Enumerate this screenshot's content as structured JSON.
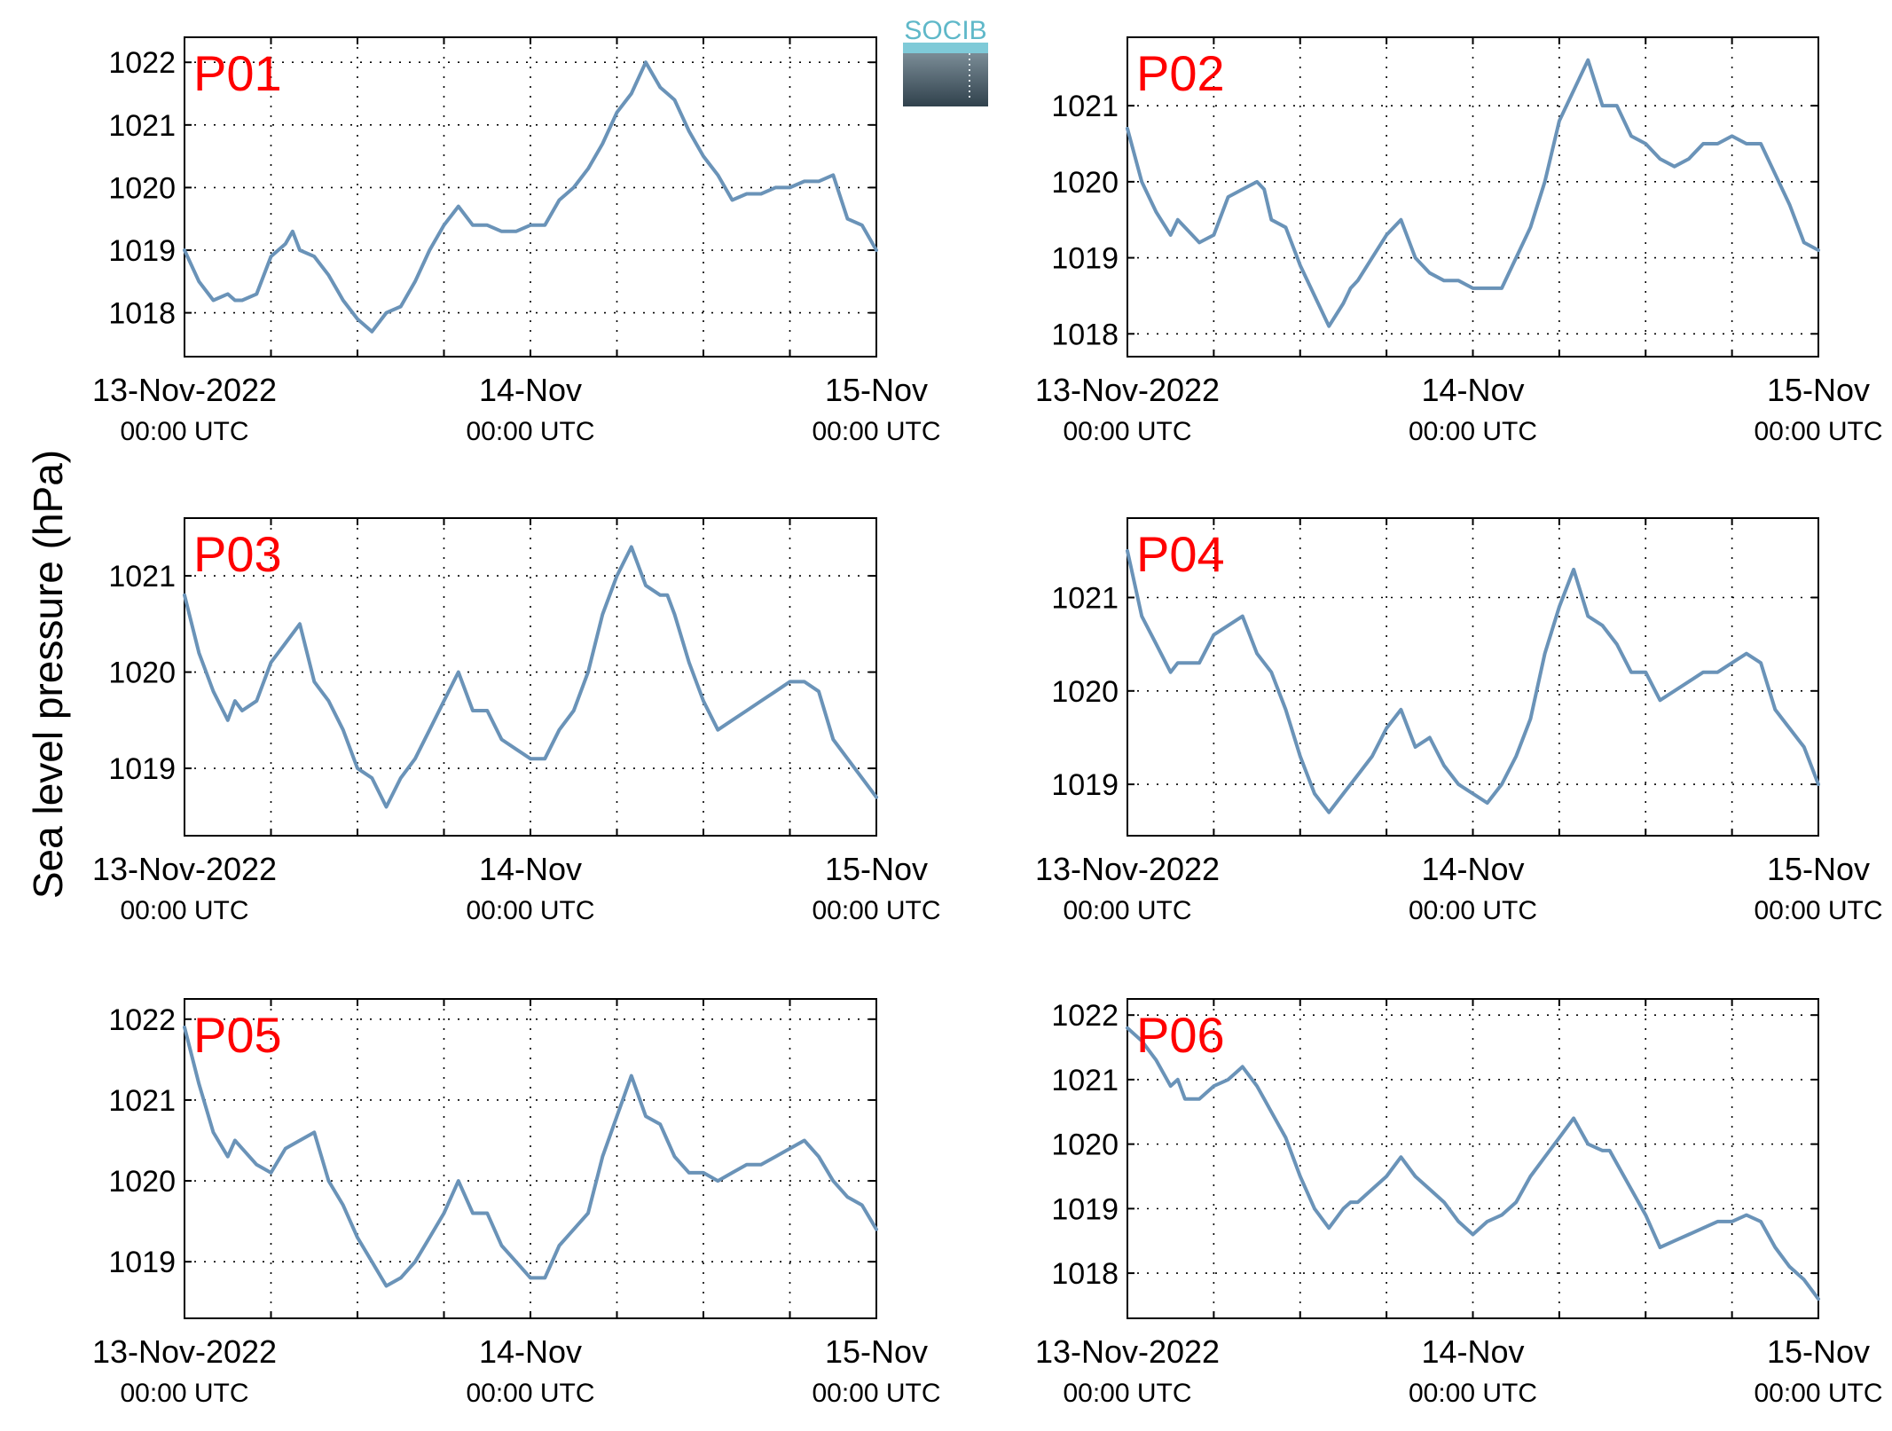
{
  "figure": {
    "ylabel": "Sea level pressure (hPa)",
    "logo_text": "SOCIB",
    "line_color": "#6a93b8",
    "label_color": "#ff0000",
    "grid_style": "dotted"
  },
  "chart_data": [
    {
      "type": "line",
      "name": "P01",
      "x_unit": "hours since 13-Nov-2022 00:00 UTC",
      "xlim": [
        0,
        48
      ],
      "ylim": [
        1017.3,
        1022.4
      ],
      "yticks": [
        1018,
        1019,
        1020,
        1021,
        1022
      ],
      "xticks": [
        {
          "value": 0,
          "line1": "13-Nov-2022",
          "line2": "00:00 UTC"
        },
        {
          "value": 24,
          "line1": "14-Nov",
          "line2": "00:00 UTC"
        },
        {
          "value": 48,
          "line1": "15-Nov",
          "line2": "00:00 UTC"
        }
      ],
      "x": [
        0,
        1,
        2,
        3,
        3.5,
        4,
        5,
        6,
        7,
        7.5,
        8,
        9,
        10,
        11,
        12,
        13,
        14,
        15,
        15.5,
        16,
        17,
        18,
        19,
        20,
        21,
        22,
        23,
        24,
        25,
        26,
        27,
        28,
        29,
        30,
        31,
        32,
        33,
        33.5,
        34,
        35,
        36,
        37,
        38,
        39,
        40,
        41,
        42,
        43,
        44,
        45,
        46,
        47,
        48
      ],
      "y": [
        1019,
        1018.5,
        1018.2,
        1018.3,
        1018.2,
        1018.2,
        1018.3,
        1018.9,
        1019.1,
        1019.3,
        1019.0,
        1018.9,
        1018.6,
        1018.2,
        1017.9,
        1017.7,
        1018.0,
        1018.1,
        1018.3,
        1018.5,
        1019.0,
        1019.4,
        1019.7,
        1019.4,
        1019.4,
        1019.3,
        1019.3,
        1019.4,
        1019.4,
        1019.8,
        1020.0,
        1020.3,
        1020.7,
        1021.2,
        1021.5,
        1022.0,
        1021.6,
        1021.5,
        1021.4,
        1020.9,
        1020.5,
        1020.2,
        1019.8,
        1019.9,
        1019.9,
        1020.0,
        1020.0,
        1020.1,
        1020.1,
        1020.2,
        1019.5,
        1019.4,
        1019.0
      ]
    },
    {
      "type": "line",
      "name": "P02",
      "x_unit": "hours since 13-Nov-2022 00:00 UTC",
      "xlim": [
        0,
        48
      ],
      "ylim": [
        1017.7,
        1021.9
      ],
      "yticks": [
        1018,
        1019,
        1020,
        1021
      ],
      "xticks": [
        {
          "value": 0,
          "line1": "13-Nov-2022",
          "line2": "00:00 UTC"
        },
        {
          "value": 24,
          "line1": "14-Nov",
          "line2": "00:00 UTC"
        },
        {
          "value": 48,
          "line1": "15-Nov",
          "line2": "00:00 UTC"
        }
      ],
      "x": [
        0,
        1,
        2,
        3,
        3.5,
        4,
        5,
        6,
        7,
        8,
        9,
        9.5,
        10,
        11,
        12,
        13,
        14,
        15,
        15.5,
        16,
        17,
        18,
        19,
        20,
        21,
        22,
        23,
        24,
        25,
        26,
        27,
        28,
        29,
        30,
        31,
        32,
        32.5,
        33,
        34,
        35,
        36,
        37,
        38,
        39,
        40,
        41,
        42,
        43,
        44,
        45,
        46,
        47,
        48
      ],
      "y": [
        1020.7,
        1020.0,
        1019.6,
        1019.3,
        1019.5,
        1019.4,
        1019.2,
        1019.3,
        1019.8,
        1019.9,
        1020.0,
        1019.9,
        1019.5,
        1019.4,
        1018.9,
        1018.5,
        1018.1,
        1018.4,
        1018.6,
        1018.7,
        1019.0,
        1019.3,
        1019.5,
        1019.0,
        1018.8,
        1018.7,
        1018.7,
        1018.6,
        1018.6,
        1018.6,
        1019.0,
        1019.4,
        1020.0,
        1020.8,
        1021.2,
        1021.6,
        1021.3,
        1021.0,
        1021.0,
        1020.6,
        1020.5,
        1020.3,
        1020.2,
        1020.3,
        1020.5,
        1020.5,
        1020.6,
        1020.5,
        1020.5,
        1020.1,
        1019.7,
        1019.2,
        1019.1
      ]
    },
    {
      "type": "line",
      "name": "P03",
      "x_unit": "hours since 13-Nov-2022 00:00 UTC",
      "xlim": [
        0,
        48
      ],
      "ylim": [
        1018.3,
        1021.6
      ],
      "yticks": [
        1019,
        1020,
        1021
      ],
      "xticks": [
        {
          "value": 0,
          "line1": "13-Nov-2022",
          "line2": "00:00 UTC"
        },
        {
          "value": 24,
          "line1": "14-Nov",
          "line2": "00:00 UTC"
        },
        {
          "value": 48,
          "line1": "15-Nov",
          "line2": "00:00 UTC"
        }
      ],
      "x": [
        0,
        1,
        2,
        3,
        3.5,
        4,
        5,
        6,
        7,
        8,
        9,
        9.5,
        10,
        11,
        12,
        13,
        14,
        15,
        15.5,
        16,
        17,
        18,
        19,
        20,
        21,
        22,
        23,
        24,
        25,
        26,
        27,
        28,
        29,
        30,
        31,
        32,
        33,
        33.5,
        34,
        35,
        36,
        37,
        38,
        39,
        40,
        41,
        42,
        43,
        44,
        45,
        46,
        47,
        48
      ],
      "y": [
        1020.8,
        1020.2,
        1019.8,
        1019.5,
        1019.7,
        1019.6,
        1019.7,
        1020.1,
        1020.3,
        1020.5,
        1019.9,
        1019.8,
        1019.7,
        1019.4,
        1019.0,
        1018.9,
        1018.6,
        1018.9,
        1019.0,
        1019.1,
        1019.4,
        1019.7,
        1020.0,
        1019.6,
        1019.6,
        1019.3,
        1019.2,
        1019.1,
        1019.1,
        1019.4,
        1019.6,
        1020.0,
        1020.6,
        1021.0,
        1021.3,
        1020.9,
        1020.8,
        1020.8,
        1020.6,
        1020.1,
        1019.7,
        1019.4,
        1019.5,
        1019.6,
        1019.7,
        1019.8,
        1019.9,
        1019.9,
        1019.8,
        1019.3,
        1019.1,
        1018.9,
        1018.7
      ]
    },
    {
      "type": "line",
      "name": "P04",
      "x_unit": "hours since 13-Nov-2022 00:00 UTC",
      "xlim": [
        0,
        48
      ],
      "ylim": [
        1018.45,
        1021.85
      ],
      "yticks": [
        1019,
        1020,
        1021
      ],
      "xticks": [
        {
          "value": 0,
          "line1": "13-Nov-2022",
          "line2": "00:00 UTC"
        },
        {
          "value": 24,
          "line1": "14-Nov",
          "line2": "00:00 UTC"
        },
        {
          "value": 48,
          "line1": "15-Nov",
          "line2": "00:00 UTC"
        }
      ],
      "x": [
        0,
        1,
        2,
        3,
        3.5,
        4,
        5,
        6,
        7,
        8,
        9,
        9.5,
        10,
        11,
        12,
        13,
        14,
        15,
        15.5,
        16,
        17,
        18,
        19,
        20,
        21,
        22,
        23,
        24,
        25,
        26,
        27,
        28,
        29,
        30,
        31,
        32,
        33,
        33.5,
        34,
        35,
        36,
        37,
        38,
        39,
        40,
        41,
        42,
        43,
        44,
        45,
        46,
        47,
        48
      ],
      "y": [
        1021.5,
        1020.8,
        1020.5,
        1020.2,
        1020.3,
        1020.3,
        1020.3,
        1020.6,
        1020.7,
        1020.8,
        1020.4,
        1020.3,
        1020.2,
        1019.8,
        1019.3,
        1018.9,
        1018.7,
        1018.9,
        1019.0,
        1019.1,
        1019.3,
        1019.6,
        1019.8,
        1019.4,
        1019.5,
        1019.2,
        1019.0,
        1018.9,
        1018.8,
        1019.0,
        1019.3,
        1019.7,
        1020.4,
        1020.9,
        1021.3,
        1020.8,
        1020.7,
        1020.6,
        1020.5,
        1020.2,
        1020.2,
        1019.9,
        1020.0,
        1020.1,
        1020.2,
        1020.2,
        1020.3,
        1020.4,
        1020.3,
        1019.8,
        1019.6,
        1019.4,
        1019.0
      ]
    },
    {
      "type": "line",
      "name": "P05",
      "x_unit": "hours since 13-Nov-2022 00:00 UTC",
      "xlim": [
        0,
        48
      ],
      "ylim": [
        1018.3,
        1022.25
      ],
      "yticks": [
        1019,
        1020,
        1021,
        1022
      ],
      "xticks": [
        {
          "value": 0,
          "line1": "13-Nov-2022",
          "line2": "00:00 UTC"
        },
        {
          "value": 24,
          "line1": "14-Nov",
          "line2": "00:00 UTC"
        },
        {
          "value": 48,
          "line1": "15-Nov",
          "line2": "00:00 UTC"
        }
      ],
      "x": [
        0,
        1,
        2,
        3,
        3.5,
        4,
        5,
        6,
        7,
        8,
        9,
        9.5,
        10,
        11,
        12,
        13,
        14,
        15,
        15.5,
        16,
        17,
        18,
        19,
        20,
        21,
        22,
        23,
        24,
        25,
        26,
        27,
        28,
        29,
        30,
        31,
        32,
        33,
        33.5,
        34,
        35,
        36,
        37,
        38,
        39,
        40,
        41,
        42,
        43,
        44,
        45,
        46,
        47,
        48
      ],
      "y": [
        1021.9,
        1021.2,
        1020.6,
        1020.3,
        1020.5,
        1020.4,
        1020.2,
        1020.1,
        1020.4,
        1020.5,
        1020.6,
        1020.3,
        1020.0,
        1019.7,
        1019.3,
        1019.0,
        1018.7,
        1018.8,
        1018.9,
        1019.0,
        1019.3,
        1019.6,
        1020.0,
        1019.6,
        1019.6,
        1019.2,
        1019.0,
        1018.8,
        1018.8,
        1019.2,
        1019.4,
        1019.6,
        1020.3,
        1020.8,
        1021.3,
        1020.8,
        1020.7,
        1020.5,
        1020.3,
        1020.1,
        1020.1,
        1020.0,
        1020.1,
        1020.2,
        1020.2,
        1020.3,
        1020.4,
        1020.5,
        1020.3,
        1020.0,
        1019.8,
        1019.7,
        1019.4
      ]
    },
    {
      "type": "line",
      "name": "P06",
      "x_unit": "hours since 13-Nov-2022 00:00 UTC",
      "xlim": [
        0,
        48
      ],
      "ylim": [
        1017.3,
        1022.25
      ],
      "yticks": [
        1018,
        1019,
        1020,
        1021,
        1022
      ],
      "xticks": [
        {
          "value": 0,
          "line1": "13-Nov-2022",
          "line2": "00:00 UTC"
        },
        {
          "value": 24,
          "line1": "14-Nov",
          "line2": "00:00 UTC"
        },
        {
          "value": 48,
          "line1": "15-Nov",
          "line2": "00:00 UTC"
        }
      ],
      "x": [
        0,
        1,
        2,
        3,
        3.5,
        4,
        5,
        6,
        7,
        8,
        9,
        9.5,
        10,
        11,
        12,
        13,
        14,
        15,
        15.5,
        16,
        17,
        18,
        19,
        20,
        21,
        22,
        23,
        24,
        25,
        26,
        27,
        28,
        29,
        30,
        31,
        32,
        33,
        33.5,
        34,
        35,
        36,
        37,
        38,
        39,
        40,
        41,
        42,
        43,
        44,
        45,
        46,
        47,
        48
      ],
      "y": [
        1021.8,
        1021.6,
        1021.3,
        1020.9,
        1021.0,
        1020.7,
        1020.7,
        1020.9,
        1021.0,
        1021.2,
        1020.9,
        1020.7,
        1020.5,
        1020.1,
        1019.5,
        1019.0,
        1018.7,
        1019.0,
        1019.1,
        1019.1,
        1019.3,
        1019.5,
        1019.8,
        1019.5,
        1019.3,
        1019.1,
        1018.8,
        1018.6,
        1018.8,
        1018.9,
        1019.1,
        1019.5,
        1019.8,
        1020.1,
        1020.4,
        1020.0,
        1019.9,
        1019.9,
        1019.7,
        1019.3,
        1018.9,
        1018.4,
        1018.5,
        1018.6,
        1018.7,
        1018.8,
        1018.8,
        1018.9,
        1018.8,
        1018.4,
        1018.1,
        1017.9,
        1017.6
      ]
    }
  ]
}
